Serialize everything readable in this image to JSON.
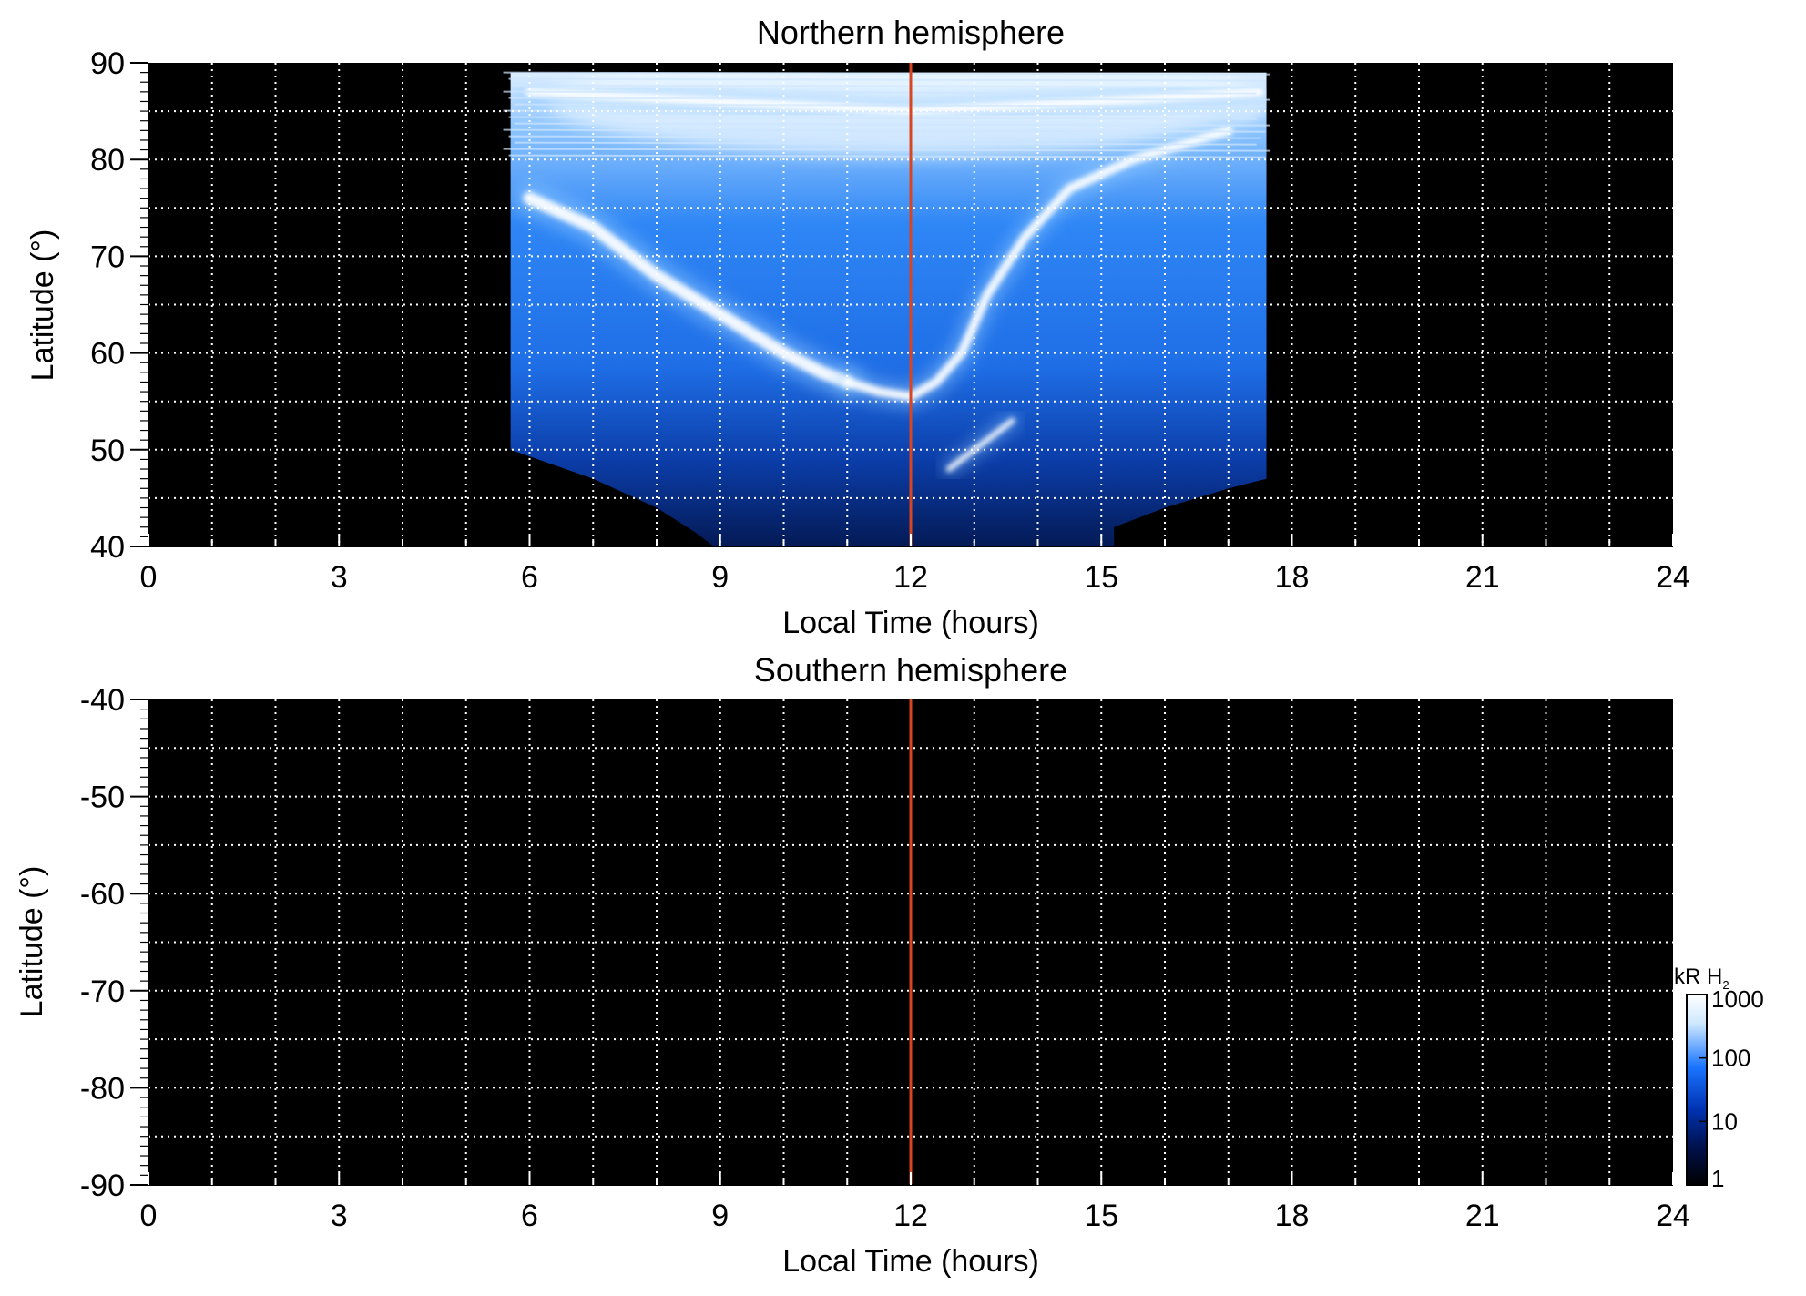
{
  "chart_data": [
    {
      "type": "heatmap",
      "title": "Northern hemisphere",
      "xlabel": "Local Time (hours)",
      "ylabel": "Latitude (°)",
      "xlim": [
        0,
        24
      ],
      "ylim": [
        40,
        90
      ],
      "xticks": [
        "0",
        "3",
        "6",
        "9",
        "12",
        "15",
        "18",
        "21",
        "24"
      ],
      "yticks": [
        "40",
        "50",
        "60",
        "70",
        "80",
        "90"
      ],
      "grid": true,
      "marker_line": {
        "x": 12,
        "color": "#d94520"
      },
      "coverage": {
        "lt_range": [
          5.7,
          17.6
        ],
        "lat_range": [
          40,
          89
        ],
        "morning_limb_edge": [
          [
            5.7,
            50
          ],
          [
            7.0,
            47
          ],
          [
            8.0,
            44
          ],
          [
            8.6,
            41.5
          ],
          [
            8.9,
            40
          ]
        ],
        "evening_limb_edge": [
          [
            15.2,
            42
          ],
          [
            16.0,
            44
          ],
          [
            17.0,
            46
          ],
          [
            17.6,
            47
          ]
        ]
      },
      "features": [
        {
          "name": "main auroral arc (dawn side)",
          "points": [
            [
              6.0,
              76
            ],
            [
              7.0,
              73
            ],
            [
              8.0,
              68
            ],
            [
              9.0,
              64
            ],
            [
              10.0,
              60
            ],
            [
              10.6,
              58
            ],
            [
              11.0,
              57
            ]
          ],
          "level_kR": 1000
        },
        {
          "name": "noon arc",
          "points": [
            [
              11.0,
              57
            ],
            [
              11.5,
              56
            ],
            [
              12.0,
              55.5
            ],
            [
              12.4,
              57
            ],
            [
              12.8,
              60
            ],
            [
              13.2,
              66
            ],
            [
              13.8,
              72
            ],
            [
              14.5,
              77
            ],
            [
              15.5,
              80
            ],
            [
              17.0,
              83
            ]
          ],
          "level_kR": 700
        },
        {
          "name": "secondary arc",
          "points": [
            [
              12.6,
              48
            ],
            [
              12.9,
              49.5
            ],
            [
              13.2,
              51
            ],
            [
              13.6,
              53
            ]
          ],
          "level_kR": 400
        },
        {
          "name": "polar cap emission",
          "points": [
            [
              6.0,
              87
            ],
            [
              9.0,
              86
            ],
            [
              12.0,
              85
            ],
            [
              15.0,
              86
            ],
            [
              17.5,
              87
            ]
          ],
          "level_kR": 800
        }
      ]
    },
    {
      "type": "heatmap",
      "title": "Southern hemisphere",
      "xlabel": "Local Time (hours)",
      "ylabel": "Latitude (°)",
      "xlim": [
        0,
        24
      ],
      "ylim": [
        -90,
        -40
      ],
      "xticks": [
        "0",
        "3",
        "6",
        "9",
        "12",
        "15",
        "18",
        "21",
        "24"
      ],
      "yticks": [
        "-40",
        "-50",
        "-60",
        "-70",
        "-80",
        "-90"
      ],
      "grid": true,
      "marker_line": {
        "x": 12,
        "color": "#d94520"
      },
      "coverage": null,
      "features": []
    }
  ],
  "colorbar": {
    "label_main": "kR H",
    "label_sub": "2",
    "scale": "log",
    "range": [
      1,
      1000
    ],
    "ticks": [
      "1000",
      "100",
      "10",
      "1"
    ],
    "colors": [
      "#000000",
      "#00114d",
      "#0033b3",
      "#1a75ff",
      "#cfe8ff",
      "#ffffff"
    ]
  }
}
